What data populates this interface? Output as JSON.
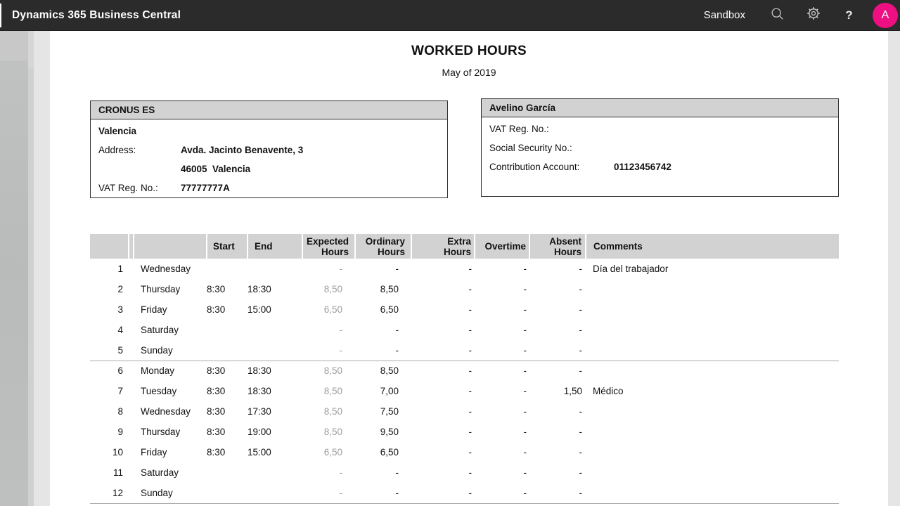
{
  "app_bar": {
    "title": "Dynamics 365 Business Central",
    "environment": "Sandbox",
    "help_label": "?",
    "avatar_initial": "A",
    "accent_color": "#ee0f82",
    "icons": [
      "search-icon",
      "gear-icon",
      "help-icon",
      "avatar"
    ]
  },
  "report": {
    "title": "WORKED HOURS",
    "subtitle": "May of 2019",
    "company_box": {
      "header": "CRONUS ES",
      "city": "Valencia",
      "rows": [
        {
          "label": "Address:",
          "value": "Avda. Jacinto Benavente, 3"
        },
        {
          "label": "",
          "value": "46005  Valencia"
        },
        {
          "label": "VAT Reg. No.:",
          "value": "77777777A"
        }
      ]
    },
    "employee_box": {
      "header": "Avelino García",
      "rows": [
        {
          "label": "VAT Reg. No.:",
          "value": ""
        },
        {
          "label": "Social Security No.:",
          "value": ""
        },
        {
          "label": "Contribution Account:",
          "value": "01123456742"
        }
      ]
    },
    "table": {
      "columns": [
        "",
        "",
        "",
        "Start",
        "End",
        "Expected\nHours",
        "Ordinary\nHours",
        "Extra\nHours",
        "Overtime",
        "Absent\nHours",
        "Comments"
      ],
      "expected_hours_color": "#9d9d9d",
      "rows": [
        {
          "num": "1",
          "day": "Wednesday",
          "start": "",
          "end": "",
          "expected": "-",
          "ordinary": "-",
          "extra": "-",
          "overtime": "-",
          "absent": "-",
          "comment": "Día del trabajador",
          "separator_after": false
        },
        {
          "num": "2",
          "day": "Thursday",
          "start": "8:30",
          "end": "18:30",
          "expected": "8,50",
          "ordinary": "8,50",
          "extra": "-",
          "overtime": "-",
          "absent": "-",
          "comment": "",
          "separator_after": false
        },
        {
          "num": "3",
          "day": "Friday",
          "start": "8:30",
          "end": "15:00",
          "expected": "6,50",
          "ordinary": "6,50",
          "extra": "-",
          "overtime": "-",
          "absent": "-",
          "comment": "",
          "separator_after": false
        },
        {
          "num": "4",
          "day": "Saturday",
          "start": "",
          "end": "",
          "expected": "-",
          "ordinary": "-",
          "extra": "-",
          "overtime": "-",
          "absent": "-",
          "comment": "",
          "separator_after": false
        },
        {
          "num": "5",
          "day": "Sunday",
          "start": "",
          "end": "",
          "expected": "-",
          "ordinary": "-",
          "extra": "-",
          "overtime": "-",
          "absent": "-",
          "comment": "",
          "separator_after": true
        },
        {
          "num": "6",
          "day": "Monday",
          "start": "8:30",
          "end": "18:30",
          "expected": "8,50",
          "ordinary": "8,50",
          "extra": "-",
          "overtime": "-",
          "absent": "-",
          "comment": "",
          "separator_after": false
        },
        {
          "num": "7",
          "day": "Tuesday",
          "start": "8:30",
          "end": "18:30",
          "expected": "8,50",
          "ordinary": "7,00",
          "extra": "-",
          "overtime": "-",
          "absent": "1,50",
          "comment": "Médico",
          "separator_after": false
        },
        {
          "num": "8",
          "day": "Wednesday",
          "start": "8:30",
          "end": "17:30",
          "expected": "8,50",
          "ordinary": "7,50",
          "extra": "-",
          "overtime": "-",
          "absent": "-",
          "comment": "",
          "separator_after": false
        },
        {
          "num": "9",
          "day": "Thursday",
          "start": "8:30",
          "end": "19:00",
          "expected": "8,50",
          "ordinary": "9,50",
          "extra": "-",
          "overtime": "-",
          "absent": "-",
          "comment": "",
          "separator_after": false
        },
        {
          "num": "10",
          "day": "Friday",
          "start": "8:30",
          "end": "15:00",
          "expected": "6,50",
          "ordinary": "6,50",
          "extra": "-",
          "overtime": "-",
          "absent": "-",
          "comment": "",
          "separator_after": false
        },
        {
          "num": "11",
          "day": "Saturday",
          "start": "",
          "end": "",
          "expected": "-",
          "ordinary": "-",
          "extra": "-",
          "overtime": "-",
          "absent": "-",
          "comment": "",
          "separator_after": false
        },
        {
          "num": "12",
          "day": "Sunday",
          "start": "",
          "end": "",
          "expected": "-",
          "ordinary": "-",
          "extra": "-",
          "overtime": "-",
          "absent": "-",
          "comment": "",
          "separator_after": true
        }
      ]
    }
  }
}
